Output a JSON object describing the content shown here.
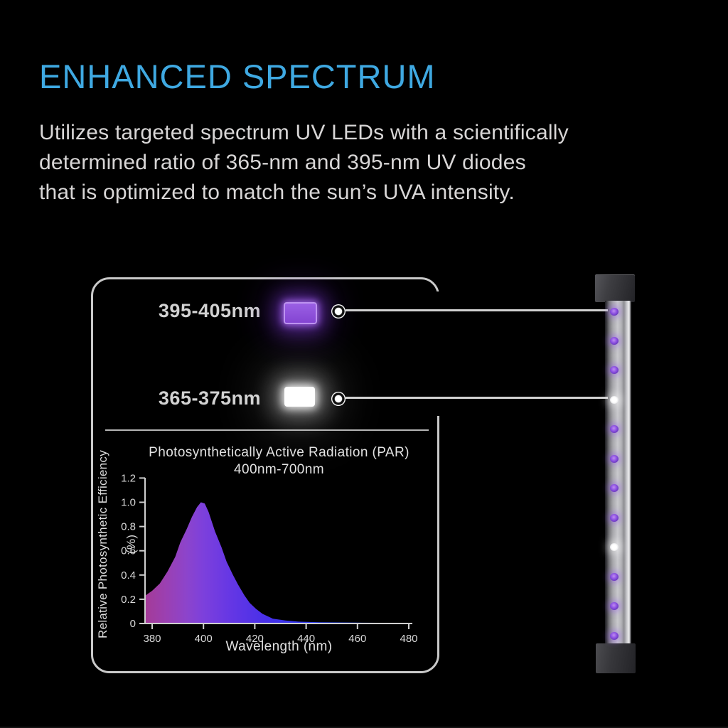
{
  "header": {
    "title": "ENHANCED SPECTRUM"
  },
  "body": {
    "lines": [
      "Utilizes targeted spectrum UV LEDs with a scientifically",
      "determined ratio of 365-nm and 395-nm UV diodes",
      "that is optimized to match the sun’s UVA intensity."
    ]
  },
  "diagram": {
    "uv_rows": [
      {
        "label": "395-405nm",
        "swatch_color": "#8b4ddb"
      },
      {
        "label": "365-375nm",
        "swatch_color": "#ffffff"
      }
    ],
    "led_bar": {
      "led_colors": [
        "purple",
        "purple",
        "purple",
        "white",
        "purple",
        "purple",
        "purple",
        "purple",
        "white",
        "purple",
        "purple",
        "purple"
      ],
      "purple_hex": "#8a4fe0",
      "white_hex": "#ffffff"
    }
  },
  "chart_data": {
    "type": "area",
    "title": "Photosynthetically Active Radiation (PAR)",
    "subtitle": "400nm-700nm",
    "xlabel": "Wavelength (nm)",
    "ylabel": "Relative Photosynthetic Efficiency (%)",
    "x_ticks": [
      380,
      400,
      420,
      440,
      460,
      480
    ],
    "y_ticks": [
      "1.2",
      "1.0",
      "0.8",
      "0.6",
      "0.4",
      "0.2",
      "0"
    ],
    "xlim": [
      377.2,
      481
    ],
    "ylim": [
      0,
      1.2
    ],
    "grid": false,
    "curve": [
      [
        377.3,
        0.23
      ],
      [
        380,
        0.27
      ],
      [
        383,
        0.33
      ],
      [
        386,
        0.43
      ],
      [
        389,
        0.55
      ],
      [
        391,
        0.67
      ],
      [
        393.5,
        0.78
      ],
      [
        395.5,
        0.88
      ],
      [
        397.5,
        0.96
      ],
      [
        399,
        1.0
      ],
      [
        400.5,
        0.99
      ],
      [
        402,
        0.92
      ],
      [
        404.5,
        0.76
      ],
      [
        407,
        0.63
      ],
      [
        409,
        0.51
      ],
      [
        411.5,
        0.4
      ],
      [
        413.5,
        0.32
      ],
      [
        416,
        0.23
      ],
      [
        418,
        0.17
      ],
      [
        420.5,
        0.12
      ],
      [
        423,
        0.08
      ],
      [
        427,
        0.04
      ],
      [
        432,
        0.025
      ],
      [
        437,
        0.015
      ],
      [
        445,
        0.01
      ],
      [
        460,
        0.007
      ],
      [
        480,
        0.004
      ]
    ],
    "gradient_stops": [
      [
        "0%",
        "#a43b97"
      ],
      [
        "8%",
        "#9b40b2"
      ],
      [
        "16%",
        "#8c44cc"
      ],
      [
        "22%",
        "#7d40dc"
      ],
      [
        "32%",
        "#6637e4"
      ],
      [
        "45%",
        "#4a30e8"
      ],
      [
        "58%",
        "#3134ee"
      ],
      [
        "72%",
        "#2343f2"
      ],
      [
        "100%",
        "#1f54f0"
      ]
    ],
    "axis_color": "#cfcfcf",
    "tick_label_color": "#d9d9d9"
  },
  "colors": {
    "background": "#000000",
    "accent_blue": "#3fa9e2",
    "body_text": "#d8d6d6",
    "panel_border": "#c9c9c9"
  }
}
